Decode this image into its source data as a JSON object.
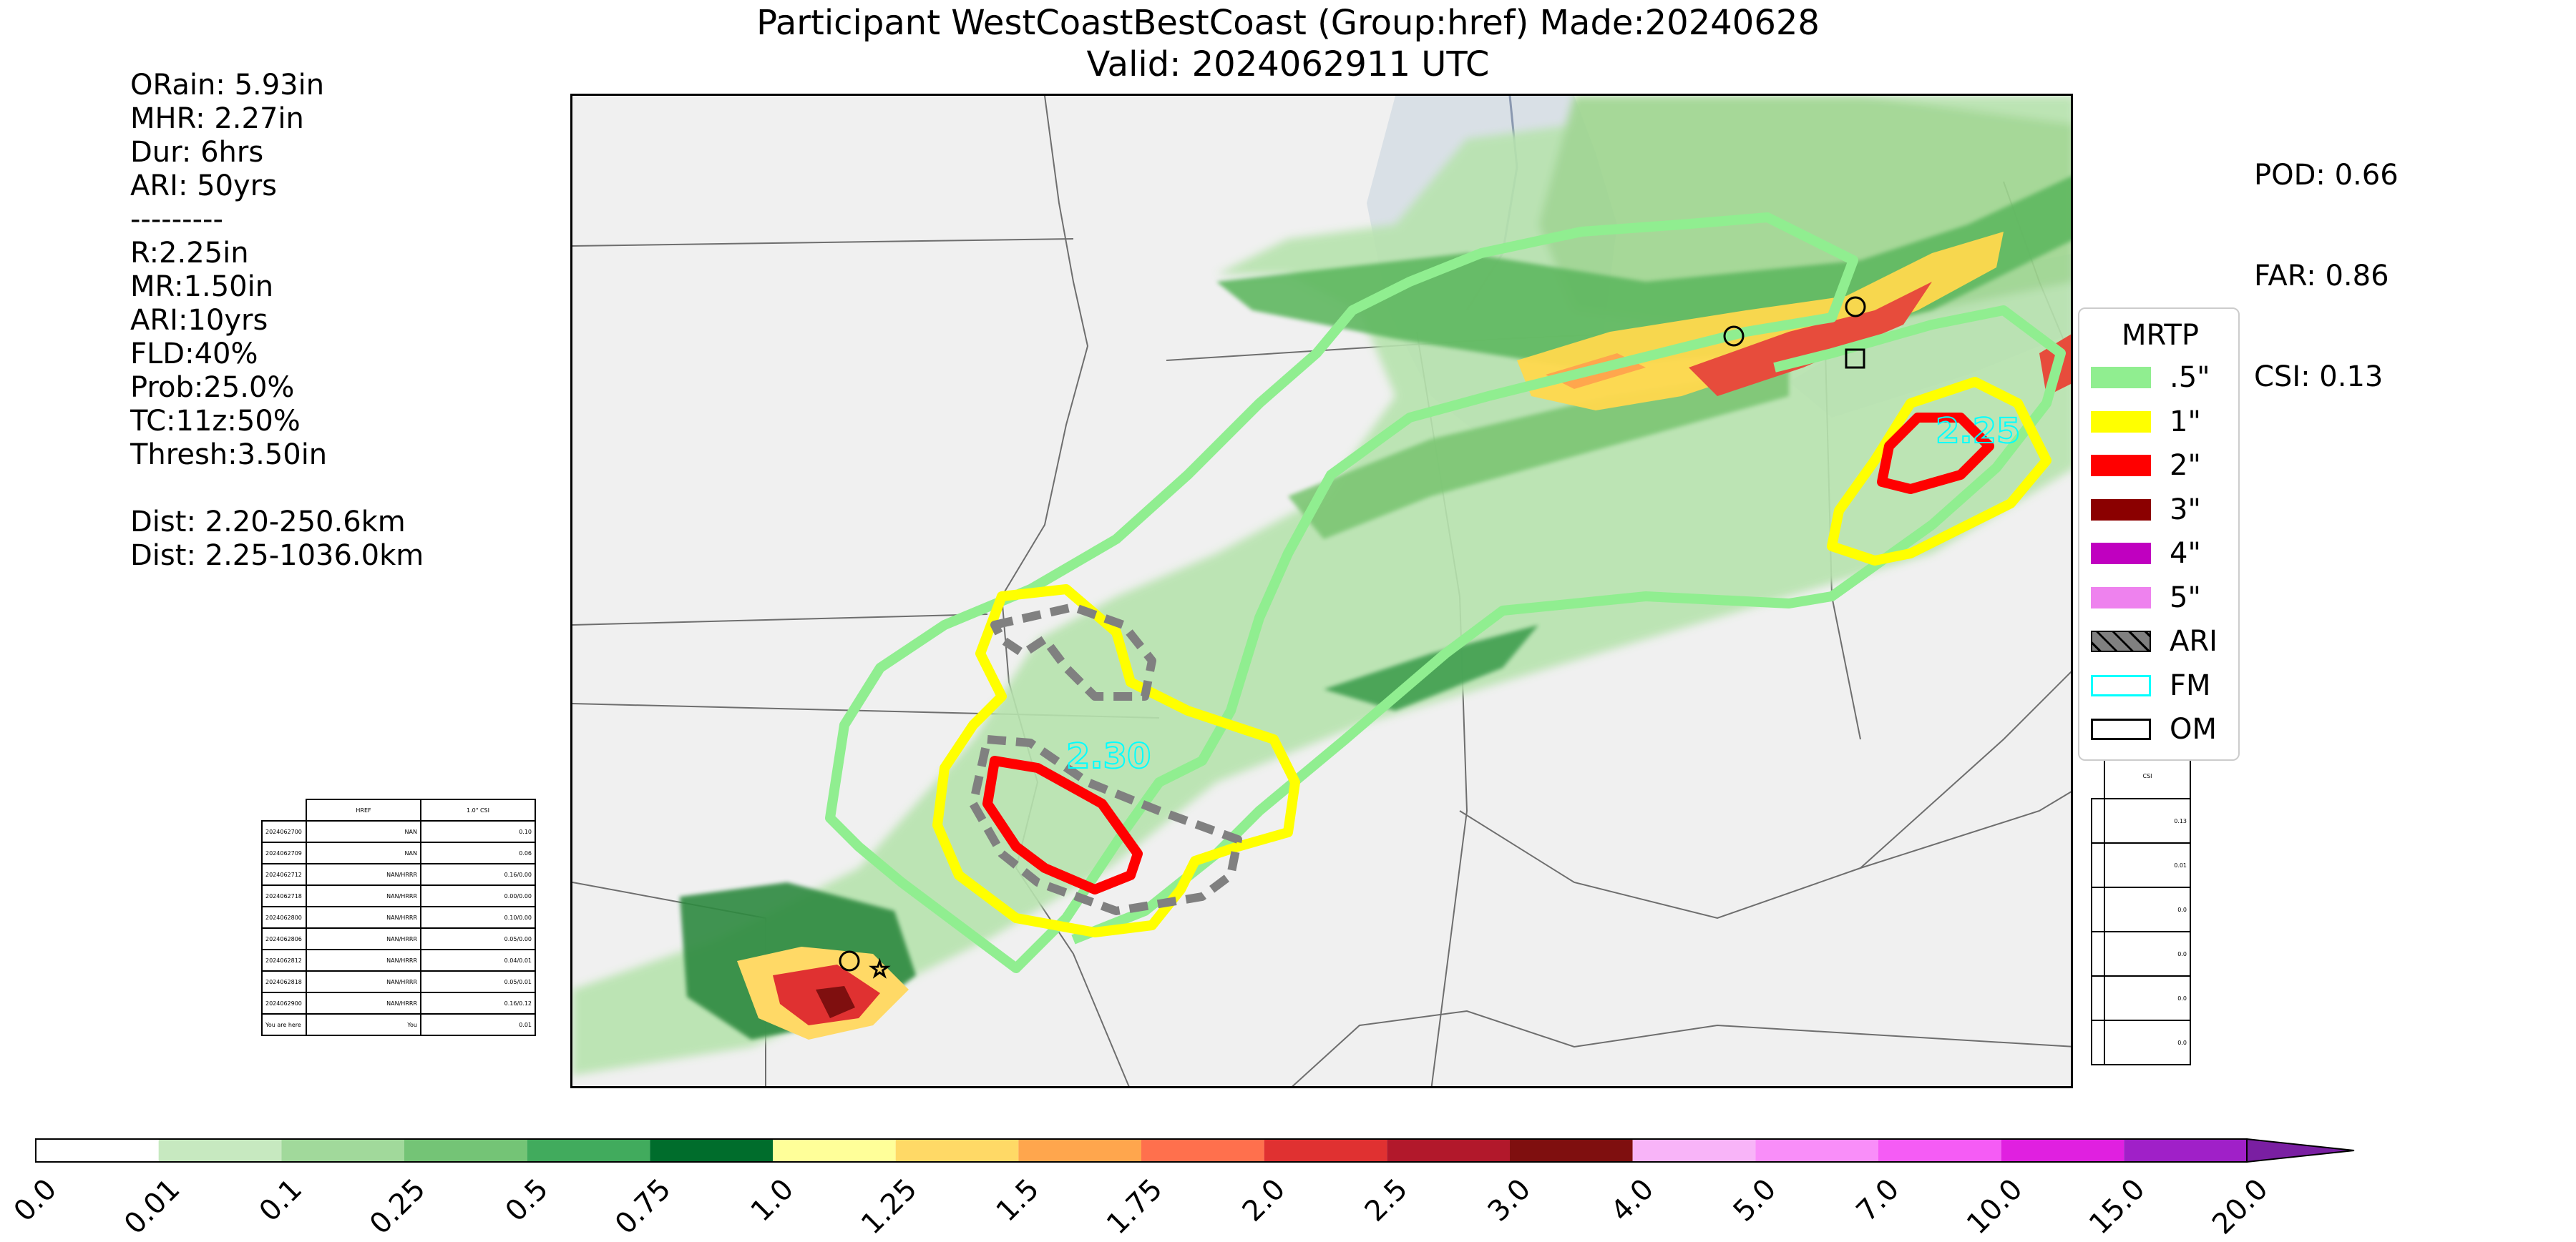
{
  "title": {
    "line1": "Participant WestCoastBestCoast (Group:href) Made:20240628",
    "line2": "Valid: 2024062911 UTC"
  },
  "stats_left": {
    "lines": [
      "ORain: 5.93in",
      "MHR: 2.27in",
      "Dur: 6hrs",
      "ARI: 50yrs",
      "---------",
      "R:2.25in",
      "MR:1.50in",
      "ARI:10yrs",
      "FLD:40%",
      "Prob:25.0%",
      "TC:11z:50%",
      "Thresh:3.50in",
      "",
      "Dist: 2.20-250.6km",
      "Dist: 2.25-1036.0km"
    ]
  },
  "stats_right": {
    "pod": "POD: 0.66",
    "far": "FAR: 0.86",
    "csi": "CSI: 0.13"
  },
  "map_labels": {
    "contour_a": "2.30",
    "contour_b": "2.25"
  },
  "legend": {
    "title": "MRTP",
    "items": [
      {
        "label": ".5\"",
        "color": "#90ee90",
        "kind": "fill"
      },
      {
        "label": "1\"",
        "color": "#ffff00",
        "kind": "fill"
      },
      {
        "label": "2\"",
        "color": "#ff0000",
        "kind": "fill"
      },
      {
        "label": "3\"",
        "color": "#8b0000",
        "kind": "fill"
      },
      {
        "label": "4\"",
        "color": "#c000c0",
        "kind": "fill"
      },
      {
        "label": "5\"",
        "color": "#ee82ee",
        "kind": "fill"
      },
      {
        "label": "ARI",
        "color": "#808080",
        "kind": "hatch"
      },
      {
        "label": "FM",
        "color": "#00ffff",
        "kind": "outline"
      },
      {
        "label": "OM",
        "color": "#000000",
        "kind": "outline"
      }
    ]
  },
  "table_left": {
    "header": [
      "",
      "HREF",
      "1.0\" CSI"
    ],
    "rows": [
      [
        "2024062700",
        "NAN",
        "0.10"
      ],
      [
        "2024062709",
        "NAN",
        "0.06"
      ],
      [
        "2024062712",
        "NAN/HRRR",
        "0.16/0.00"
      ],
      [
        "2024062718",
        "NAN/HRRR",
        "0.00/0.00"
      ],
      [
        "2024062800",
        "NAN/HRRR",
        "0.10/0.00"
      ],
      [
        "2024062806",
        "NAN/HRRR",
        "0.05/0.00"
      ],
      [
        "2024062812",
        "NAN/HRRR",
        "0.04/0.01"
      ],
      [
        "2024062818",
        "NAN/HRRR",
        "0.05/0.01"
      ],
      [
        "2024062900",
        "NAN/HRRR",
        "0.16/0.12"
      ],
      [
        "You are here",
        "You",
        "0.01"
      ]
    ]
  },
  "table_right": {
    "header": "CSI",
    "rows": [
      "0.13",
      "0.01",
      "0.0",
      "0.0",
      "0.0",
      "0.0"
    ]
  },
  "colorbar": {
    "ticks": [
      "0.0",
      "0.01",
      "0.1",
      "0.25",
      "0.5",
      "0.75",
      "1.0",
      "1.25",
      "1.5",
      "1.75",
      "2.0",
      "2.5",
      "3.0",
      "4.0",
      "5.0",
      "7.0",
      "10.0",
      "15.0",
      "20.0"
    ],
    "colors": [
      "#ffffff",
      "#c7e9c0",
      "#a1d99b",
      "#74c476",
      "#41ab5d",
      "#006d2c",
      "#ffff99",
      "#ffd966",
      "#ffa64d",
      "#ff704d",
      "#e03131",
      "#b2182b",
      "#7f0f0f",
      "#f8b4f8",
      "#f98ef9",
      "#f55cf5",
      "#e020e0",
      "#a020c8"
    ],
    "extend_color": "#7a1fa2"
  }
}
